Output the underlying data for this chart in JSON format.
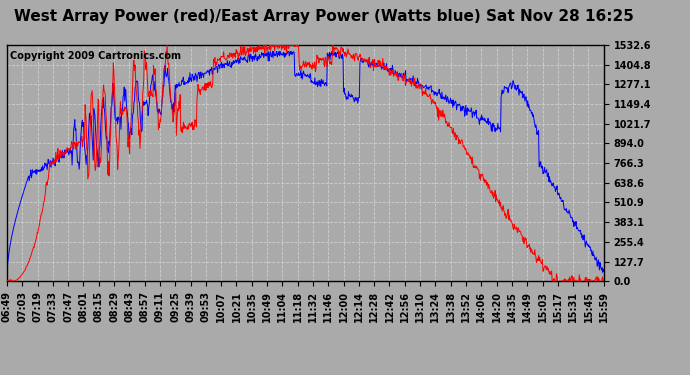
{
  "title": "West Array Power (red)/East Array Power (Watts blue) Sat Nov 28 16:25",
  "copyright": "Copyright 2009 Cartronics.com",
  "background_color": "#aaaaaa",
  "plot_bg_color": "#aaaaaa",
  "grid_color": "#d0d0d0",
  "yticks": [
    0.0,
    127.7,
    255.4,
    383.1,
    510.9,
    638.6,
    766.3,
    894.0,
    1021.7,
    1149.4,
    1277.1,
    1404.8,
    1532.6
  ],
  "ymax": 1532.6,
  "ymin": 0.0,
  "x_labels": [
    "06:49",
    "07:03",
    "07:19",
    "07:33",
    "07:47",
    "08:01",
    "08:15",
    "08:29",
    "08:43",
    "08:57",
    "09:11",
    "09:25",
    "09:39",
    "09:53",
    "10:07",
    "10:21",
    "10:35",
    "10:49",
    "11:04",
    "11:18",
    "11:32",
    "11:46",
    "12:00",
    "12:14",
    "12:28",
    "12:42",
    "12:56",
    "13:10",
    "13:24",
    "13:38",
    "13:52",
    "14:06",
    "14:20",
    "14:35",
    "14:49",
    "15:03",
    "15:17",
    "15:31",
    "15:45",
    "15:59"
  ],
  "red_color": "#ff0000",
  "blue_color": "#0000ff",
  "title_fontsize": 11,
  "tick_fontsize": 7,
  "copyright_fontsize": 7,
  "total_minutes": 550
}
